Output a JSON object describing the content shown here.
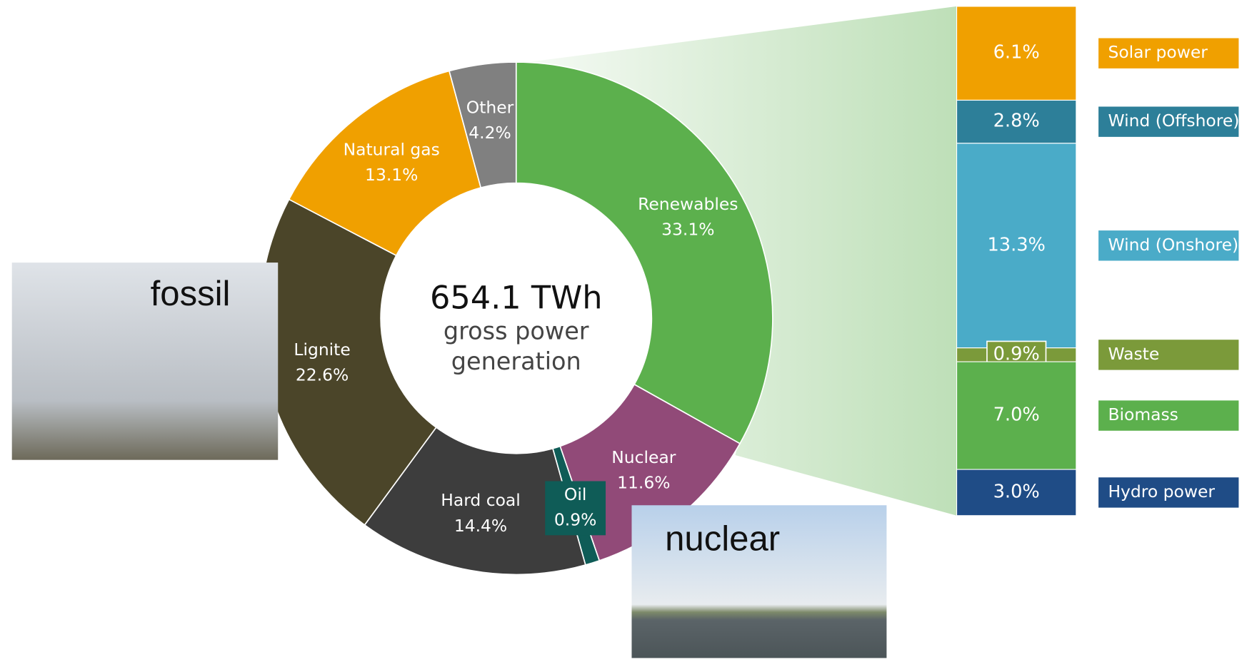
{
  "chart_data": [
    {
      "type": "donut",
      "center_value": "654.1 TWh",
      "center_text": [
        "gross power",
        "generation"
      ],
      "categories": [
        "Renewables",
        "Nuclear",
        "Oil",
        "Hard coal",
        "Lignite",
        "Natural gas",
        "Other"
      ],
      "values": [
        33.1,
        11.6,
        0.9,
        14.4,
        22.6,
        13.1,
        4.2
      ],
      "value_labels": [
        "33.1%",
        "11.6%",
        "0.9%",
        "14.4%",
        "22.6%",
        "13.1%",
        "4.2%"
      ],
      "colors": [
        "#5cb04d",
        "#914a78",
        "#0f5c57",
        "#3d3d3d",
        "#4b4529",
        "#f0a000",
        "#808080"
      ]
    },
    {
      "type": "stacked-column",
      "categories": [
        "Solar power",
        "Wind (Offshore)",
        "Wind (Onshore)",
        "Waste",
        "Biomass",
        "Hydro power"
      ],
      "values": [
        6.1,
        2.8,
        13.3,
        0.9,
        7.0,
        3.0
      ],
      "value_labels": [
        "6.1%",
        "2.8%",
        "13.3%",
        "0.9%",
        "7.0%",
        "3.0%"
      ],
      "colors": [
        "#f0a000",
        "#2d7f99",
        "#4aabc8",
        "#7b9a3a",
        "#5cb04d",
        "#1f4c86"
      ]
    }
  ],
  "photos": [
    "fossil",
    "nuclear"
  ]
}
